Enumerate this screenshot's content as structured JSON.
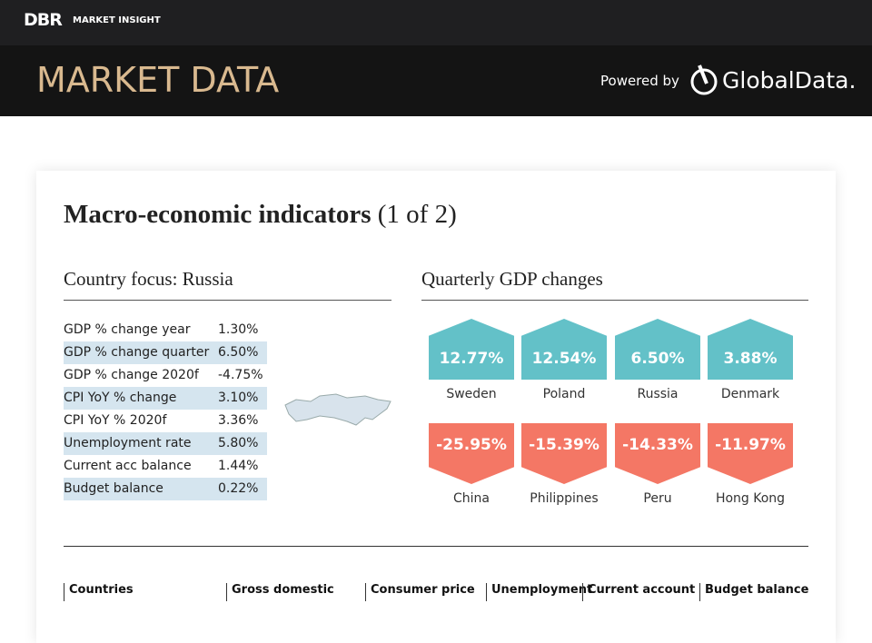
{
  "header": {
    "logo": "DBR",
    "section": "MARKET INSIGHT",
    "title": "MARKET DATA",
    "powered_by": "Powered by",
    "brand": "GlobalData."
  },
  "card": {
    "title": "Macro-economic indicators",
    "subtitle": "(1 of 2)",
    "country_focus": {
      "heading": "Country focus: Russia",
      "rows": [
        [
          "GDP % change year",
          "1.30%"
        ],
        [
          "GDP % change quarter",
          "6.50%"
        ],
        [
          "GDP % change 2020f",
          "-4.75%"
        ],
        [
          "CPI YoY % change",
          "3.10%"
        ],
        [
          "CPI YoY % 2020f",
          "3.36%"
        ],
        [
          "Unemployment rate",
          "5.80%"
        ],
        [
          "Current acc balance",
          "1.44%"
        ],
        [
          "Budget balance",
          "0.22%"
        ]
      ]
    },
    "gdp_changes": {
      "heading": "Quarterly GDP changes",
      "top": [
        {
          "value": "12.77%",
          "country": "Sweden"
        },
        {
          "value": "12.54%",
          "country": "Poland"
        },
        {
          "value": "6.50%",
          "country": "Russia"
        },
        {
          "value": "3.88%",
          "country": "Denmark"
        }
      ],
      "bottom": [
        {
          "value": "-25.95%",
          "country": "China"
        },
        {
          "value": "-15.39%",
          "country": "Philippines"
        },
        {
          "value": "-14.33%",
          "country": "Peru"
        },
        {
          "value": "-11.97%",
          "country": "Hong Kong"
        }
      ]
    },
    "table_headers": [
      "Countries",
      "Gross domestic",
      "Consumer price",
      "Unemployment",
      "Current account",
      "Budget balance"
    ]
  }
}
